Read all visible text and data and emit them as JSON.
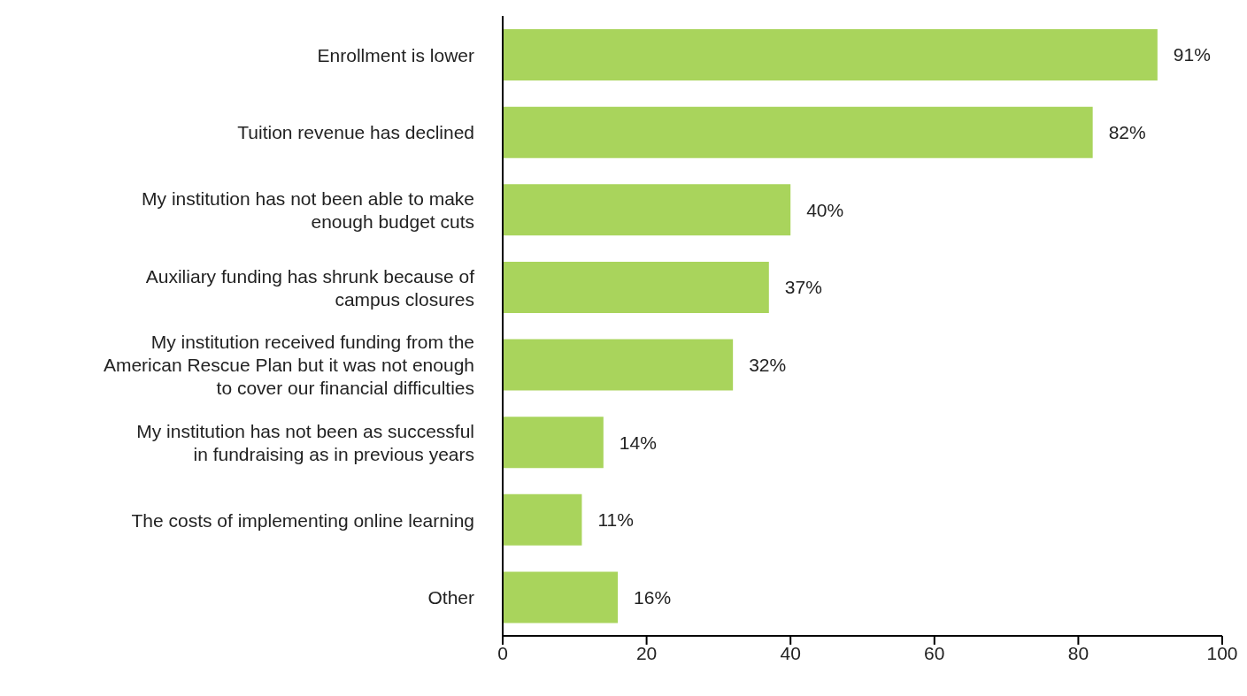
{
  "chart_data": {
    "type": "bar",
    "orientation": "horizontal",
    "categories": [
      "Enrollment is lower",
      "Tuition revenue has declined",
      "My institution has not been able to make enough budget cuts",
      "Auxiliary funding has shrunk because of campus closures",
      "My institution received funding from the American Rescue Plan but it was not enough to cover our financial difficulties",
      "My institution has not been as successful in fundraising as in previous years",
      "The costs of implementing online learning",
      "Other"
    ],
    "values": [
      91,
      82,
      40,
      37,
      32,
      14,
      11,
      16
    ],
    "value_labels": [
      "91%",
      "82%",
      "40%",
      "37%",
      "32%",
      "14%",
      "11%",
      "16%"
    ],
    "color": "#a9d45c",
    "xlim": [
      0,
      100
    ],
    "xticks": [
      0,
      20,
      40,
      60,
      80,
      100
    ],
    "grid": false
  }
}
